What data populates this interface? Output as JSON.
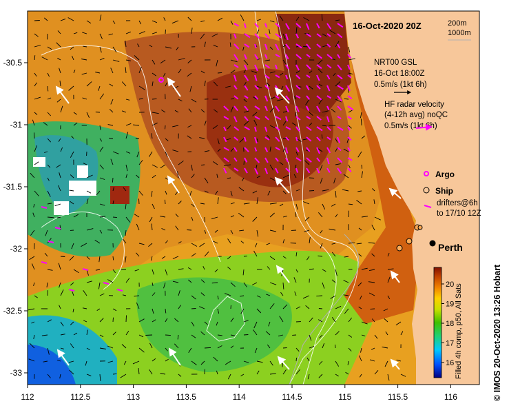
{
  "title": "16-Oct-2020 20Z",
  "depth_contours": [
    "200m",
    "1000m"
  ],
  "x_ticks": [
    "112",
    "112.5",
    "113",
    "113.5",
    "114",
    "114.5",
    "115",
    "115.5",
    "116"
  ],
  "y_ticks": [
    "-30.5",
    "-31",
    "-31.5",
    "-32",
    "-32.5",
    "-33"
  ],
  "gsl_legend": {
    "line1": "NRT00 GSL",
    "line2": "16-Oct 18:00Z",
    "line3": "0.5m/s (1kt 6h)"
  },
  "hf_legend": {
    "line1": "HF radar velocity",
    "line2": "(4-12h avg) noQC",
    "line3": "0.5m/s (1kt 6h)"
  },
  "markers": {
    "argo": "Argo",
    "ship": "Ship",
    "drifters_line1": "drifters@6h",
    "drifters_line2": "to 17/10 12Z"
  },
  "city_label": "Perth",
  "colorbar": {
    "ticks": [
      "16",
      "17",
      "18",
      "19",
      "20"
    ],
    "label": "Filled 4h comp, p50, All Sats"
  },
  "credit": "© IMOS 20-Oct-2020 13:26 Hobart",
  "colors": {
    "land": "#f7c79a",
    "hf_arrow": "#ff00ff",
    "gsl_arrow": "#ffffff",
    "vector": "#000000"
  }
}
